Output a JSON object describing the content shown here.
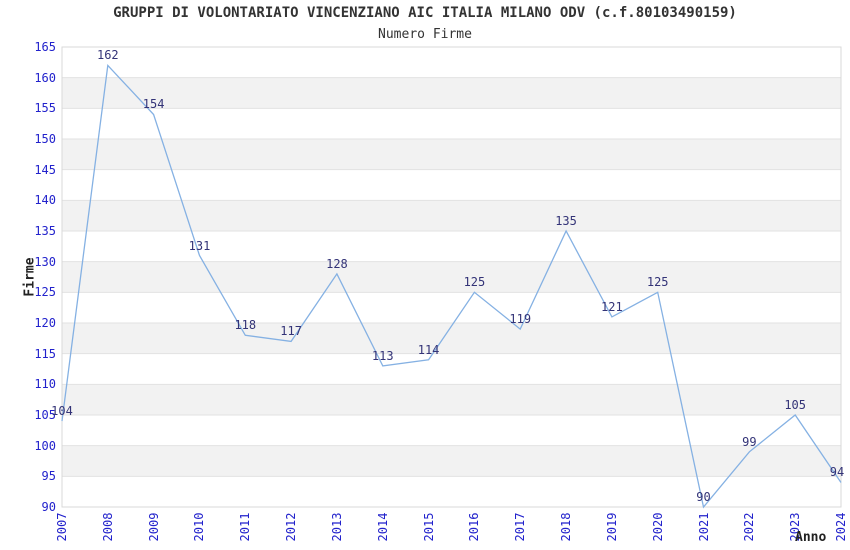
{
  "chart_data": {
    "type": "line",
    "title": "GRUPPI DI VOLONTARIATO VINCENZIANO AIC ITALIA MILANO ODV (c.f.80103490159)",
    "subtitle": "Numero Firme",
    "xlabel": "Anno",
    "ylabel": "Firme",
    "x": [
      "2007",
      "2008",
      "2009",
      "2010",
      "2011",
      "2012",
      "2013",
      "2014",
      "2015",
      "2016",
      "2017",
      "2018",
      "2019",
      "2020",
      "2021",
      "2022",
      "2023",
      "2024"
    ],
    "series": [
      {
        "name": "Numero Firme",
        "values": [
          104,
          162,
          154,
          131,
          118,
          117,
          128,
          113,
          114,
          125,
          119,
          135,
          121,
          125,
          90,
          99,
          105,
          94
        ]
      }
    ],
    "ylim": [
      90,
      165
    ],
    "ytick_step": 5,
    "yticks": [
      90,
      95,
      100,
      105,
      110,
      115,
      120,
      125,
      130,
      135,
      140,
      145,
      150,
      155,
      160,
      165
    ],
    "grid": "horizontal gridlines with alternating shaded bands",
    "legend_position": "none",
    "data_labels_shown": true,
    "colors": {
      "line": "#85b1e3",
      "tick_label": "#2222cc",
      "data_label": "#333377",
      "band": "#f2f2f2",
      "grid_line": "#e2e2e2",
      "plot_border": "#d9d9d9",
      "title_text": "#333333",
      "axis_title_text": "#222222",
      "background": "#ffffff"
    }
  }
}
